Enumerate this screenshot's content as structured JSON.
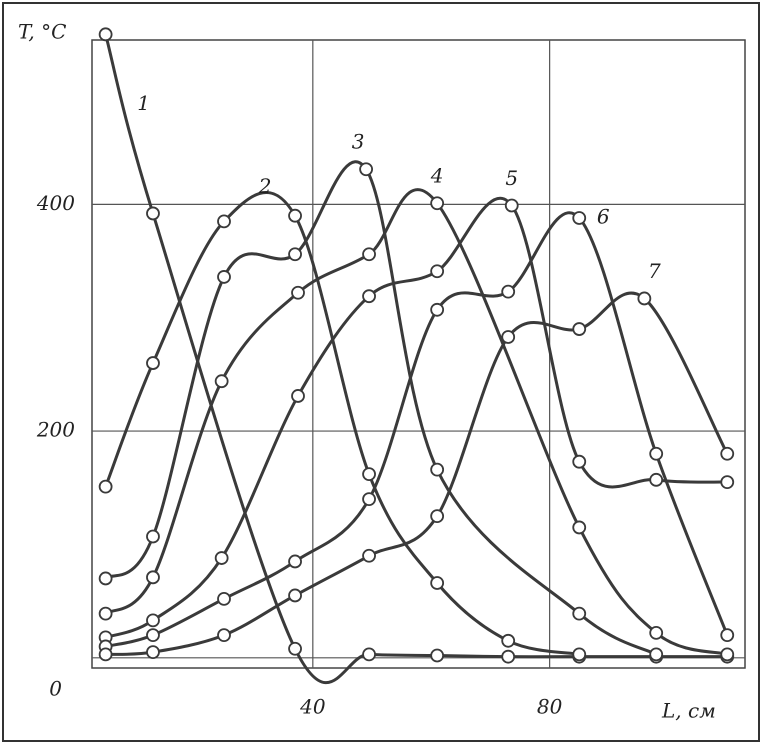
{
  "chart_data": {
    "type": "line",
    "y_label": "T, °C",
    "x_label": "L, см",
    "xlim": [
      2.7,
      113
    ],
    "ylim": [
      -9,
      545
    ],
    "xticks": [
      40,
      80
    ],
    "yticks": [
      0,
      200,
      400
    ],
    "grid": true,
    "series": [
      {
        "name": "1",
        "color": "#3a3a3a",
        "x": [
          5,
          13,
          37,
          49.5,
          61,
          73,
          85,
          98,
          110
        ],
        "values": [
          550,
          392,
          8,
          3,
          2,
          1,
          1,
          1,
          1
        ]
      },
      {
        "name": "2",
        "color": "#3a3a3a",
        "x": [
          5,
          13,
          25,
          37,
          49.5,
          61,
          73,
          85
        ],
        "values": [
          151,
          260,
          385,
          390,
          162,
          66,
          15,
          3
        ]
      },
      {
        "name": "3",
        "color": "#3a3a3a",
        "x": [
          5,
          13,
          25,
          37,
          49,
          61,
          85,
          98
        ],
        "values": [
          70,
          107,
          336,
          356,
          431,
          166,
          39,
          3
        ]
      },
      {
        "name": "4",
        "color": "#3a3a3a",
        "x": [
          5,
          13,
          24.6,
          37.5,
          49.5,
          61,
          85,
          98,
          110
        ],
        "values": [
          39,
          71,
          244,
          322,
          356,
          401,
          115,
          22,
          3
        ]
      },
      {
        "name": "5",
        "color": "#3a3a3a",
        "x": [
          5,
          13,
          24.6,
          37.5,
          49.5,
          61,
          73.6,
          85,
          98,
          110
        ],
        "values": [
          18,
          33,
          88,
          231,
          319,
          341,
          399,
          173,
          157,
          155
        ]
      },
      {
        "name": "6",
        "color": "#3a3a3a",
        "x": [
          5,
          13,
          25,
          37,
          49.5,
          61,
          73,
          85,
          98,
          110
        ],
        "values": [
          10,
          20,
          52,
          85,
          140,
          307,
          323,
          388,
          180,
          20
        ]
      },
      {
        "name": "7",
        "color": "#3a3a3a",
        "x": [
          5,
          13,
          25,
          37,
          49.5,
          61,
          73,
          85,
          96,
          110
        ],
        "values": [
          3,
          5,
          20,
          55,
          90,
          125,
          283,
          290,
          317,
          180
        ]
      }
    ]
  }
}
